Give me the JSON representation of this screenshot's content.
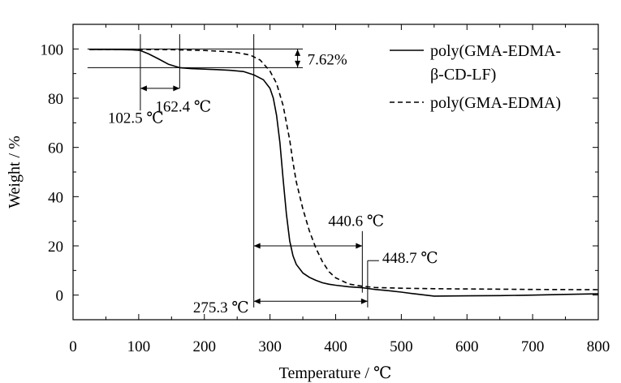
{
  "chart_data": {
    "type": "line",
    "xlabel": "Temperature / ℃",
    "ylabel": "Weight / %",
    "xlim": [
      0,
      800
    ],
    "ylim": [
      -10,
      110
    ],
    "x_ticks": [
      0,
      100,
      200,
      300,
      400,
      500,
      600,
      700,
      800
    ],
    "y_ticks": [
      0,
      20,
      40,
      60,
      80,
      100
    ],
    "grid": false,
    "legend_position": "top-right",
    "series": [
      {
        "name": "poly(GMA-EDMA-β-CD-LF)",
        "line_style": "solid",
        "x": [
          25,
          60,
          90,
          102.5,
          115,
          130,
          145,
          162.4,
          180,
          200,
          220,
          240,
          260,
          275.3,
          290,
          300,
          305,
          310,
          315,
          320,
          325,
          330,
          335,
          340,
          350,
          360,
          370,
          380,
          390,
          400,
          420,
          440.6,
          448.7,
          460,
          480,
          500,
          520,
          550,
          600,
          650,
          700,
          750,
          800
        ],
        "y": [
          99.8,
          99.8,
          99.6,
          99.4,
          98,
          96,
          93.8,
          92.4,
          92,
          91.8,
          91.6,
          91.3,
          90.8,
          89.5,
          87.5,
          84,
          80,
          73,
          62,
          47,
          33,
          22,
          16,
          12.5,
          9,
          7.2,
          6,
          5,
          4.4,
          4,
          3.4,
          3,
          2.7,
          2.3,
          1.8,
          1.2,
          0.5,
          -0.4,
          -0.3,
          -0.2,
          0,
          0.3,
          0.5
        ]
      },
      {
        "name": "poly(GMA-EDMA)",
        "line_style": "dashed",
        "x": [
          25,
          100,
          150,
          200,
          230,
          250,
          270,
          285,
          300,
          310,
          320,
          330,
          335,
          340,
          350,
          360,
          370,
          380,
          390,
          400,
          420,
          440,
          460,
          500,
          550,
          600,
          700,
          800
        ],
        "y": [
          99.8,
          99.8,
          99.7,
          99.4,
          99,
          98.5,
          97.5,
          95.5,
          91,
          86,
          77,
          63,
          54,
          46,
          35,
          26,
          19,
          13.5,
          9.5,
          7,
          4.5,
          3.6,
          3.1,
          2.8,
          2.6,
          2.5,
          2.3,
          2.2
        ]
      }
    ],
    "annotations": {
      "weight_loss": "7.62%",
      "t1": "102.5 ℃",
      "t2": "162.4 ℃",
      "t3": "275.3 ℃",
      "t4": "440.6 ℃",
      "t5": "448.7 ℃"
    }
  }
}
